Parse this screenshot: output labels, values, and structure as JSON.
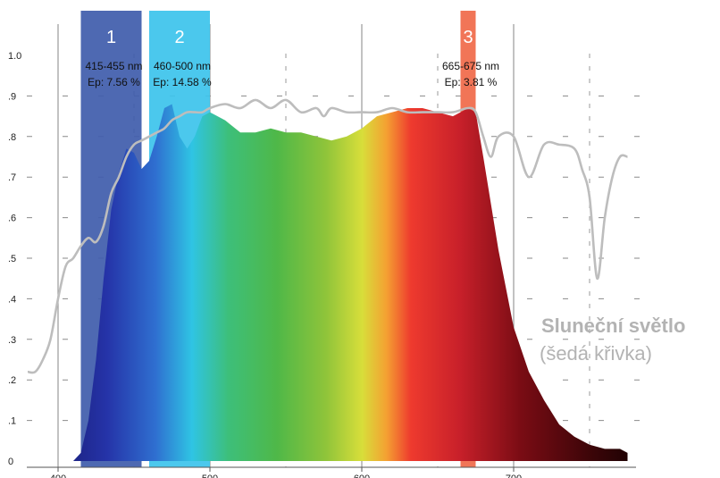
{
  "chart_data": {
    "type": "area",
    "xlim": [
      380,
      780
    ],
    "ylim": [
      0,
      1.0
    ],
    "x_ticks": [
      400,
      500,
      600,
      700
    ],
    "y_tick_labels": [
      "0",
      ".1",
      ".2",
      ".3",
      ".4",
      ".5",
      ".6",
      ".7",
      ".8",
      ".9",
      "1.0"
    ],
    "grid": "vertical solid at 100 nm, dashed at 50 nm; horizontal dashed ticks",
    "spectrum": {
      "x": [
        410,
        415,
        420,
        425,
        430,
        435,
        440,
        445,
        450,
        455,
        460,
        465,
        470,
        475,
        480,
        485,
        490,
        495,
        500,
        510,
        520,
        530,
        540,
        550,
        560,
        570,
        580,
        590,
        600,
        610,
        620,
        630,
        640,
        650,
        660,
        665,
        670,
        675,
        680,
        690,
        700,
        710,
        720,
        730,
        740,
        750,
        760,
        770,
        775
      ],
      "y": [
        0.0,
        0.02,
        0.1,
        0.25,
        0.45,
        0.62,
        0.71,
        0.77,
        0.76,
        0.72,
        0.74,
        0.8,
        0.87,
        0.88,
        0.8,
        0.77,
        0.8,
        0.85,
        0.86,
        0.84,
        0.81,
        0.81,
        0.82,
        0.81,
        0.81,
        0.8,
        0.79,
        0.8,
        0.82,
        0.85,
        0.86,
        0.87,
        0.87,
        0.86,
        0.85,
        0.86,
        0.87,
        0.86,
        0.75,
        0.52,
        0.33,
        0.22,
        0.15,
        0.09,
        0.06,
        0.04,
        0.03,
        0.03,
        0.02
      ]
    },
    "sunlight": {
      "x": [
        380,
        385,
        390,
        395,
        400,
        405,
        410,
        415,
        420,
        425,
        430,
        435,
        440,
        445,
        450,
        455,
        460,
        465,
        470,
        475,
        480,
        485,
        490,
        495,
        500,
        510,
        520,
        530,
        540,
        550,
        560,
        570,
        575,
        580,
        590,
        600,
        610,
        620,
        630,
        640,
        650,
        660,
        670,
        675,
        680,
        685,
        690,
        700,
        710,
        720,
        730,
        740,
        745,
        750,
        755,
        760,
        765,
        770,
        775
      ],
      "y": [
        0.22,
        0.22,
        0.25,
        0.3,
        0.4,
        0.48,
        0.5,
        0.53,
        0.55,
        0.54,
        0.58,
        0.66,
        0.7,
        0.75,
        0.78,
        0.79,
        0.8,
        0.81,
        0.82,
        0.84,
        0.85,
        0.86,
        0.86,
        0.86,
        0.87,
        0.88,
        0.87,
        0.89,
        0.87,
        0.89,
        0.86,
        0.87,
        0.85,
        0.87,
        0.86,
        0.86,
        0.86,
        0.87,
        0.86,
        0.86,
        0.86,
        0.86,
        0.87,
        0.86,
        0.8,
        0.75,
        0.8,
        0.8,
        0.7,
        0.78,
        0.78,
        0.77,
        0.72,
        0.65,
        0.45,
        0.6,
        0.7,
        0.75,
        0.75
      ]
    },
    "bands": [
      {
        "label": "1",
        "range_text": "415-455 nm",
        "ep_text": "Ep: 7.56 %",
        "from": 415,
        "to": 455,
        "color": "#3f5cab"
      },
      {
        "label": "2",
        "range_text": "460-500 nm",
        "ep_text": "Ep: 14.58 %",
        "from": 460,
        "to": 500,
        "color": "#3cc3ec"
      },
      {
        "label": "3",
        "range_text": "665-675 nm",
        "ep_text": "Ep: 3.81 %",
        "from": 665,
        "to": 675,
        "color": "#f06e4e"
      }
    ],
    "legend": {
      "title": "Sluneční světlo",
      "subtitle": "(šedá křivka)"
    }
  }
}
